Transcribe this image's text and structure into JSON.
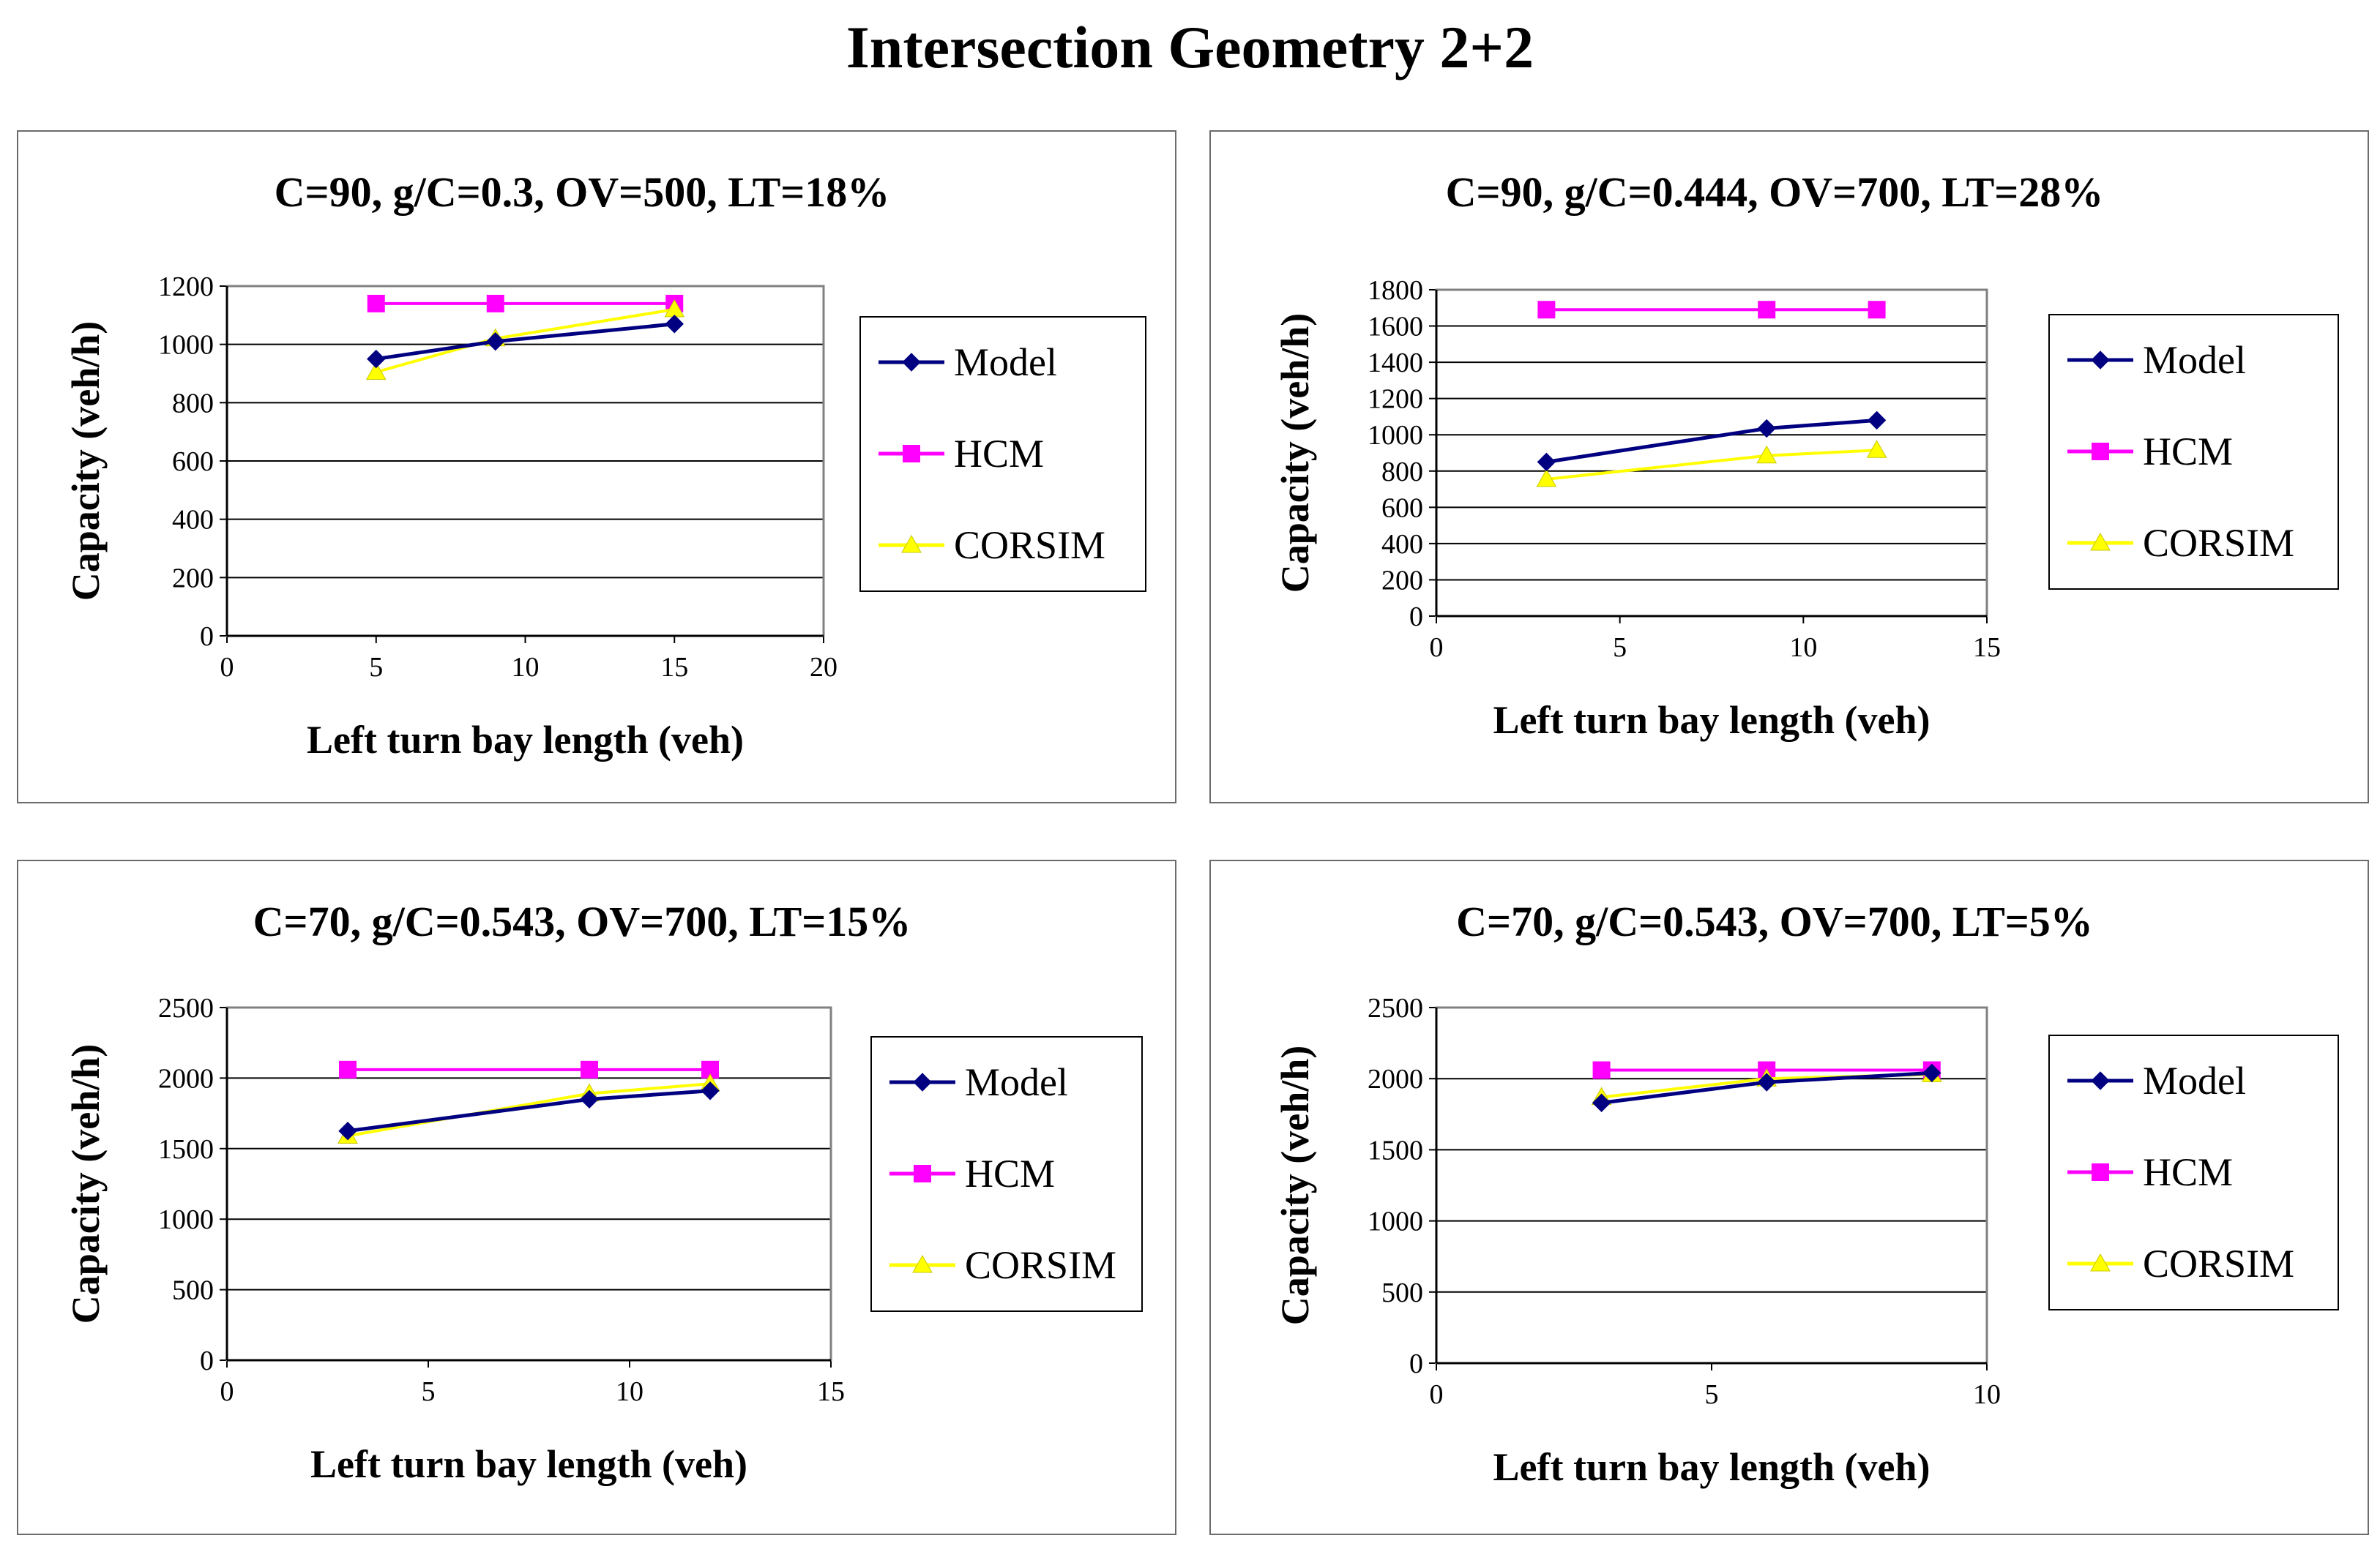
{
  "title": "Intersection Geometry 2+2",
  "legend_labels": [
    "Model",
    "HCM",
    "CORSIM"
  ],
  "series_colors": {
    "Model": "#000080",
    "HCM": "#ff00ff",
    "CORSIM": "#ffff00"
  },
  "chart_data": [
    {
      "type": "line",
      "title": "C=90, g/C=0.3, OV=500, LT=18%",
      "xlabel": "Left turn bay length (veh)",
      "ylabel": "Capacity (veh/h)",
      "xlim": [
        0,
        20
      ],
      "ylim": [
        0,
        1200
      ],
      "xticks": [
        0,
        5,
        10,
        15,
        20
      ],
      "yticks": [
        0,
        200,
        400,
        600,
        800,
        1000,
        1200
      ],
      "x": [
        5,
        9,
        15
      ],
      "series": [
        {
          "name": "Model",
          "values": [
            950,
            1010,
            1070
          ]
        },
        {
          "name": "HCM",
          "values": [
            1140,
            1140,
            1140
          ]
        },
        {
          "name": "CORSIM",
          "values": [
            905,
            1020,
            1120
          ]
        }
      ]
    },
    {
      "type": "line",
      "title": "C=90, g/C=0.444, OV=700, LT=28%",
      "xlabel": "Left turn bay length (veh)",
      "ylabel": "Capacity (veh/h)",
      "xlim": [
        0,
        15
      ],
      "ylim": [
        0,
        1800
      ],
      "xticks": [
        0,
        5,
        10,
        15
      ],
      "yticks": [
        0,
        200,
        400,
        600,
        800,
        1000,
        1200,
        1400,
        1600,
        1800
      ],
      "x": [
        3,
        9,
        12
      ],
      "series": [
        {
          "name": "Model",
          "values": [
            850,
            1035,
            1080
          ]
        },
        {
          "name": "HCM",
          "values": [
            1690,
            1690,
            1690
          ]
        },
        {
          "name": "CORSIM",
          "values": [
            755,
            885,
            915
          ]
        }
      ]
    },
    {
      "type": "line",
      "title": "C=70, g/C=0.543, OV=700, LT=15%",
      "xlabel": "Left turn bay length (veh)",
      "ylabel": "Capacity (veh/h)",
      "xlim": [
        0,
        15
      ],
      "ylim": [
        0,
        2500
      ],
      "xticks": [
        0,
        5,
        10,
        15
      ],
      "yticks": [
        0,
        500,
        1000,
        1500,
        2000,
        2500
      ],
      "x": [
        3,
        9,
        12
      ],
      "series": [
        {
          "name": "Model",
          "values": [
            1625,
            1850,
            1910
          ]
        },
        {
          "name": "HCM",
          "values": [
            2060,
            2060,
            2060
          ]
        },
        {
          "name": "CORSIM",
          "values": [
            1590,
            1890,
            1960
          ]
        }
      ]
    },
    {
      "type": "line",
      "title": "C=70, g/C=0.543, OV=700, LT=5%",
      "xlabel": "Left turn bay length (veh)",
      "ylabel": "Capacity (veh/h)",
      "xlim": [
        0,
        10
      ],
      "ylim": [
        0,
        2500
      ],
      "xticks": [
        0,
        5,
        10
      ],
      "yticks": [
        0,
        500,
        1000,
        1500,
        2000,
        2500
      ],
      "x": [
        3,
        6,
        9
      ],
      "series": [
        {
          "name": "Model",
          "values": [
            1830,
            1975,
            2040
          ]
        },
        {
          "name": "HCM",
          "values": [
            2060,
            2060,
            2060
          ]
        },
        {
          "name": "CORSIM",
          "values": [
            1870,
            2000,
            2030
          ]
        }
      ]
    }
  ]
}
